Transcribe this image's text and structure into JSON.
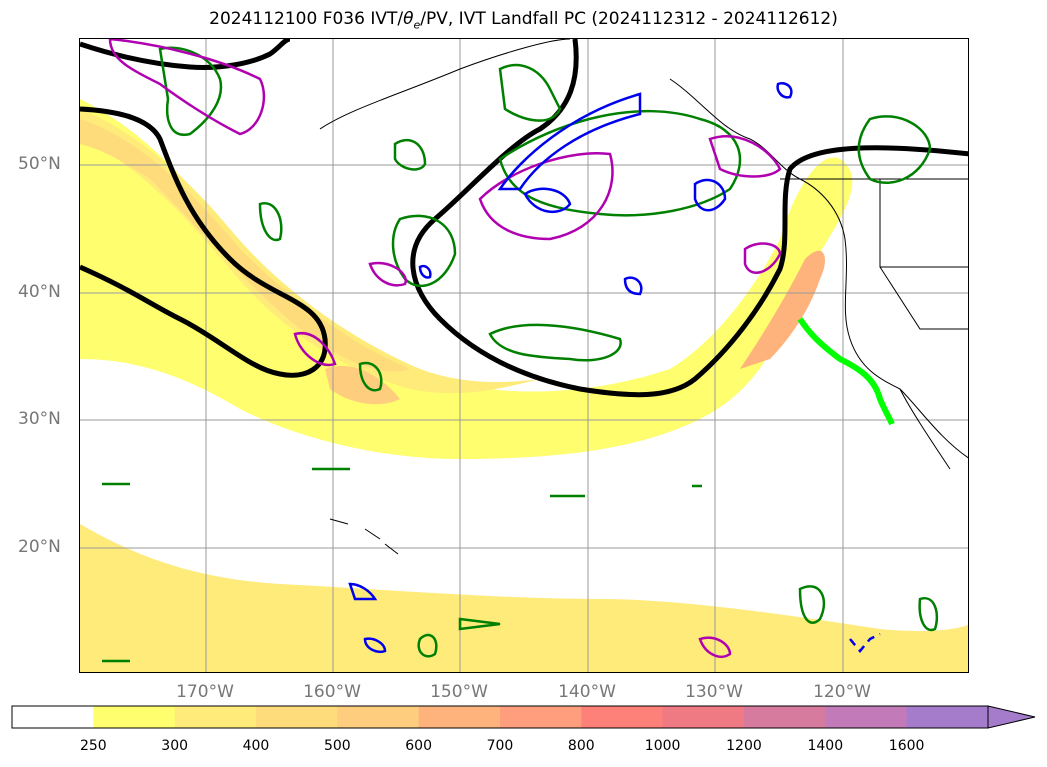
{
  "title_prefix": "2024112100 F036 IVT/",
  "title_theta": "θ",
  "title_sub": "e",
  "title_suffix": "/PV, IVT Landfall PC (2024112312 - 2024112612)",
  "latitudes": [
    {
      "text": "50°N",
      "lat": 50
    },
    {
      "text": "40°N",
      "lat": 40
    },
    {
      "text": "30°N",
      "lat": 30
    },
    {
      "text": "20°N",
      "lat": 20
    }
  ],
  "longitudes": [
    {
      "text": "170°W",
      "lon": -170
    },
    {
      "text": "160°W",
      "lon": -160
    },
    {
      "text": "150°W",
      "lon": -150
    },
    {
      "text": "140°W",
      "lon": -140
    },
    {
      "text": "130°W",
      "lon": -130
    },
    {
      "text": "120°W",
      "lon": -120
    }
  ],
  "colorbar": {
    "labels": [
      "250",
      "300",
      "400",
      "500",
      "600",
      "700",
      "800",
      "1000",
      "1200",
      "1400",
      "1600"
    ],
    "colors": [
      "#ffffff",
      "#fefe6e",
      "#feeb7a",
      "#fedc7c",
      "#fecd7e",
      "#feb37d",
      "#fe9e7c",
      "#fe8179",
      "#ef7a84",
      "#d67a9e",
      "#c27ab9",
      "#a47ccb"
    ]
  },
  "legend": {
    "ivt_fill": "IVT",
    "theta_e_contour": "#000000",
    "pv_contour_green": "#008000",
    "pv_contour_magenta": "#b000b0",
    "pv_contour_blue": "#0000ee",
    "landfall_line": "#00ff00"
  }
}
